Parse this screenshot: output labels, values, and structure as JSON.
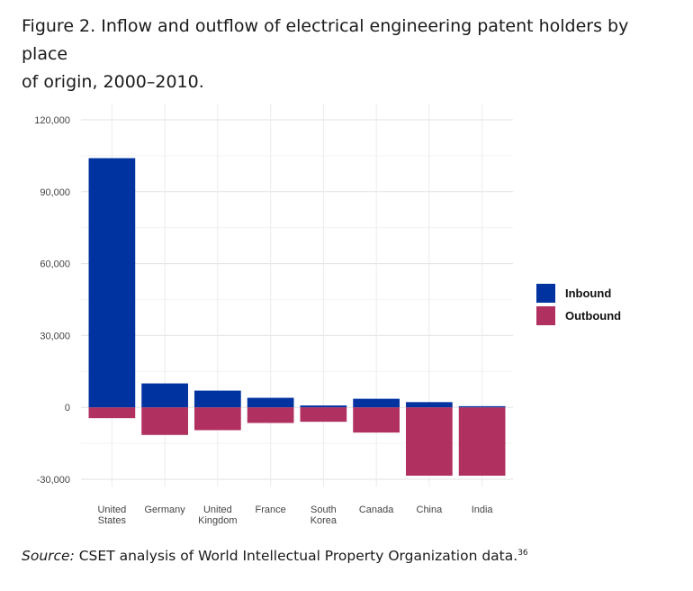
{
  "figure": {
    "title_line1": "Figure 2. Inflow and outflow of electrical engineering patent holders by place",
    "title_line2": "of origin, 2000–2010."
  },
  "source": {
    "label": "Source:",
    "text": " CSET analysis of World Intellectual Property Organization data.",
    "footnote": "36"
  },
  "chart_data": {
    "type": "bar",
    "title": "",
    "xlabel": "",
    "ylabel": "",
    "ylim": [
      -30000,
      120000
    ],
    "yticks": [
      -30000,
      0,
      30000,
      60000,
      90000,
      120000
    ],
    "ytick_labels": [
      "-30,000",
      "0",
      "30,000",
      "60,000",
      "90,000",
      "120,000"
    ],
    "grid": true,
    "legend_position": "right",
    "categories": [
      [
        "United",
        "States"
      ],
      [
        "Germany"
      ],
      [
        "United",
        "Kingdom"
      ],
      [
        "France"
      ],
      [
        "South",
        "Korea"
      ],
      [
        "Canada"
      ],
      [
        "China"
      ],
      [
        "India"
      ]
    ],
    "series": [
      {
        "name": "Inbound",
        "color": "#0033a0",
        "values": [
          104000,
          10000,
          7000,
          4000,
          800,
          3600,
          2200,
          500
        ]
      },
      {
        "name": "Outbound",
        "color": "#b03060",
        "values": [
          -4500,
          -11500,
          -9500,
          -6500,
          -6000,
          -10500,
          -28500,
          -28500
        ]
      }
    ]
  }
}
